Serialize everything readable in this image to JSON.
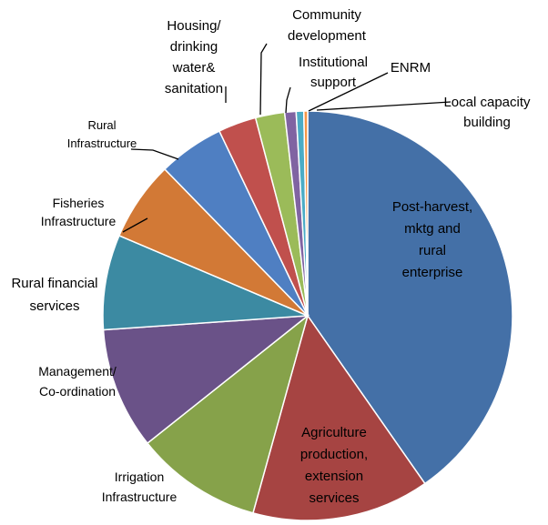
{
  "chart_data": {
    "type": "pie",
    "title": "",
    "legend": "none",
    "slices": [
      {
        "label": "Post-harvest, mktg and rural enterprise",
        "lines": [
          "Post-harvest,",
          "mktg and",
          "rural",
          "enterprise"
        ],
        "value": 40.3,
        "color": "#4470a7"
      },
      {
        "label": "Agriculture production, extension services",
        "lines": [
          "Agriculture",
          "production,",
          "extension",
          "services"
        ],
        "value": 14.0,
        "color": "#a64442"
      },
      {
        "label": "Irrigation Infrastructure",
        "lines": [
          "Irrigation",
          "Infrastructure"
        ],
        "value": 10.0,
        "color": "#86a24a"
      },
      {
        "label": "Management/ Co-ordination",
        "lines": [
          "Management/",
          "Co-ordination"
        ],
        "value": 9.6,
        "color": "#6a5288"
      },
      {
        "label": "Rural financial services",
        "lines": [
          "Rural financial",
          "services"
        ],
        "value": 7.5,
        "color": "#3c8aa2"
      },
      {
        "label": "Fisheries Infrastructure",
        "lines": [
          "Fisheries",
          "Infrastructure"
        ],
        "value": 6.3,
        "color": "#d27936"
      },
      {
        "label": "Rural Infrastructure",
        "lines": [
          "Rural",
          "Infrastructure"
        ],
        "value": 5.2,
        "color": "#4f7fc2"
      },
      {
        "label": "Housing/ drinking water& sanitation",
        "lines": [
          "Housing/",
          "drinking",
          "water&",
          "sanitation"
        ],
        "value": 3.0,
        "color": "#c0504d"
      },
      {
        "label": "Community development",
        "lines": [
          "Community",
          "development"
        ],
        "value": 2.3,
        "color": "#9bbb59"
      },
      {
        "label": "Institutional support",
        "lines": [
          "Institutional",
          "support"
        ],
        "value": 0.9,
        "color": "#8064a2"
      },
      {
        "label": "ENRM",
        "lines": [
          "ENRM"
        ],
        "value": 0.6,
        "color": "#4bacc6"
      },
      {
        "label": "Local capacity building",
        "lines": [
          "Local capacity",
          "building"
        ],
        "value": 0.3,
        "color": "#f79646"
      }
    ]
  }
}
